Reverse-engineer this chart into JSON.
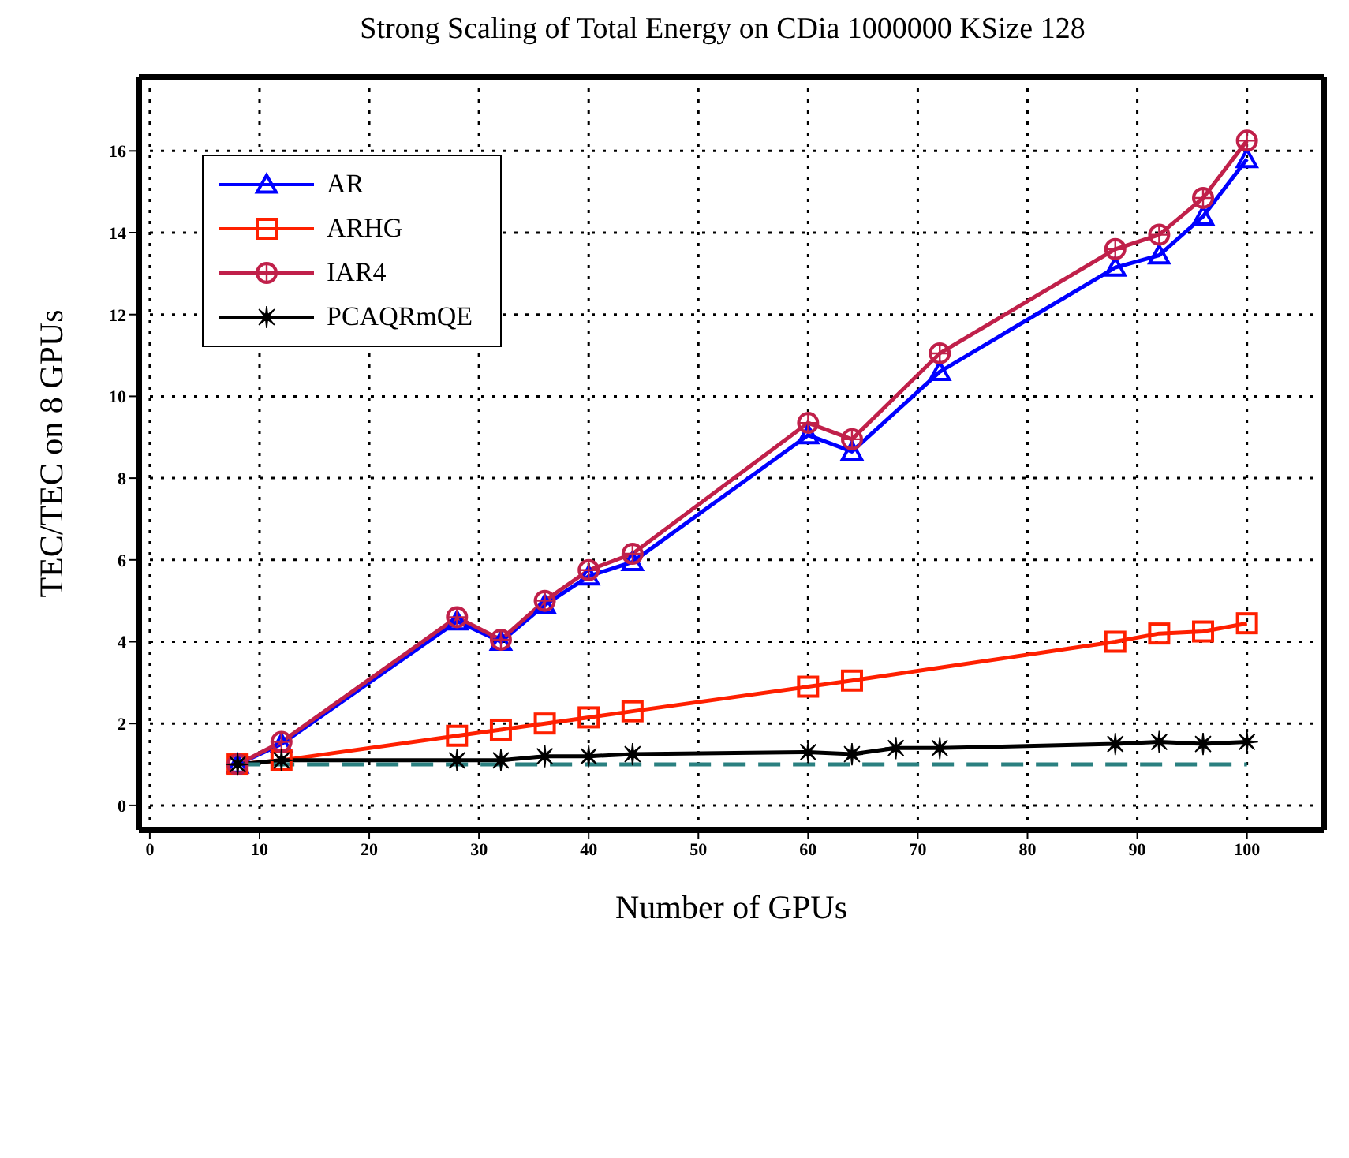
{
  "chart_data": {
    "type": "line",
    "title": "Strong Scaling of Total Energy on CDia 1000000 KSize 128",
    "xlabel": "Number of GPUs",
    "ylabel": "TEC/TEC on 8 GPUs",
    "xlim": [
      -1,
      107
    ],
    "xticks": [
      0,
      10,
      20,
      30,
      40,
      50,
      60,
      70,
      80,
      90,
      100
    ],
    "ylim": [
      -0.6,
      17.8
    ],
    "yticks": [
      0,
      2,
      4,
      6,
      8,
      10,
      12,
      14,
      16
    ],
    "grid": true,
    "legend": "top left",
    "series": [
      {
        "name": "AR",
        "color": "#0000ff",
        "marker": "triangle",
        "x": [
          8,
          12,
          28,
          32,
          36,
          40,
          44,
          60,
          64,
          72,
          88,
          92,
          96,
          100
        ],
        "values": [
          1,
          1.5,
          4.5,
          4.0,
          4.9,
          5.6,
          5.95,
          9.05,
          8.65,
          10.6,
          13.15,
          13.45,
          14.4,
          15.8
        ]
      },
      {
        "name": "ARHG",
        "color": "#ff2000",
        "marker": "square",
        "x": [
          8,
          12,
          28,
          32,
          36,
          40,
          44,
          60,
          64,
          88,
          92,
          96,
          100
        ],
        "values": [
          1,
          1.1,
          1.7,
          1.85,
          2.0,
          2.15,
          2.3,
          2.9,
          3.05,
          4.0,
          4.2,
          4.25,
          4.45
        ]
      },
      {
        "name": "IAR4",
        "color": "#c0204a",
        "marker": "circle",
        "x": [
          8,
          12,
          28,
          32,
          36,
          40,
          44,
          60,
          64,
          72,
          88,
          92,
          96,
          100
        ],
        "values": [
          1,
          1.55,
          4.6,
          4.05,
          5.0,
          5.75,
          6.15,
          9.35,
          8.95,
          11.05,
          13.6,
          13.95,
          14.85,
          16.25
        ]
      },
      {
        "name": "PCAQRmQE",
        "color": "#000000",
        "marker": "star",
        "x": [
          8,
          12,
          28,
          32,
          36,
          40,
          44,
          60,
          64,
          68,
          72,
          88,
          92,
          96,
          100
        ],
        "values": [
          1,
          1.1,
          1.1,
          1.1,
          1.2,
          1.2,
          1.25,
          1.3,
          1.25,
          1.4,
          1.4,
          1.5,
          1.55,
          1.5,
          1.55
        ]
      },
      {
        "color": "#2a8080",
        "line_style": "dashed",
        "x": [
          8,
          100
        ],
        "values": [
          1,
          1
        ]
      }
    ]
  }
}
